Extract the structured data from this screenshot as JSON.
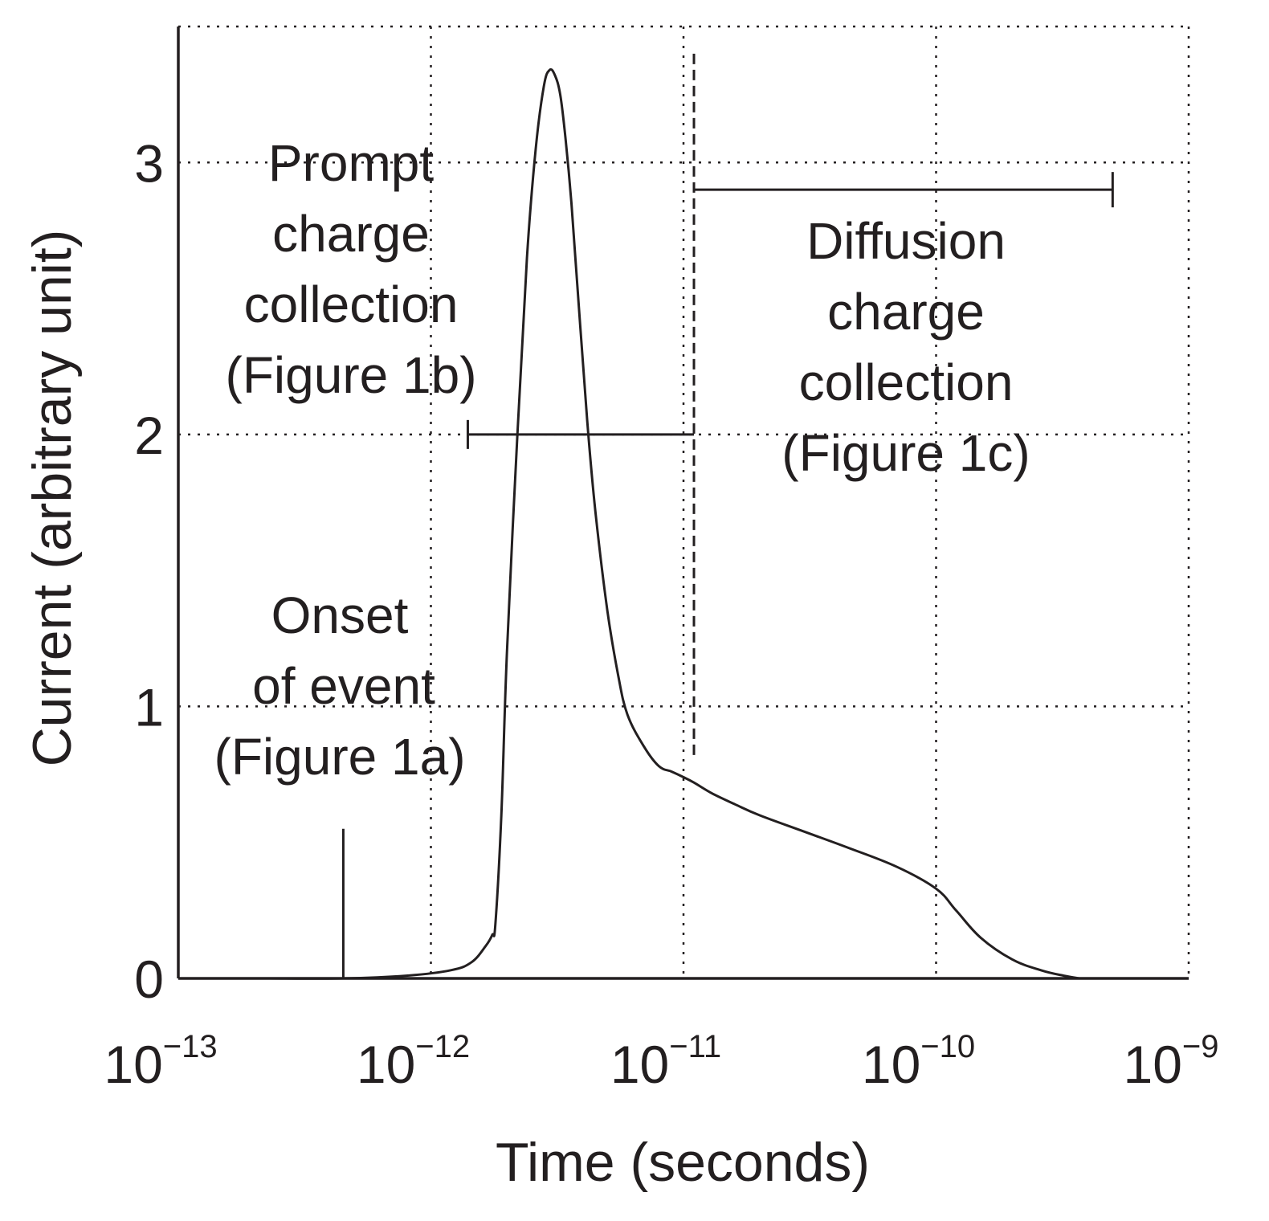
{
  "chart_data": {
    "type": "line",
    "title": "",
    "xlabel": "Time (seconds)",
    "ylabel": "Current (arbitrary unit)",
    "x_scale": "log",
    "xlim": [
      1e-13,
      1e-09
    ],
    "ylim": [
      0,
      3.5
    ],
    "grid": true,
    "x_ticks": [
      {
        "base": "10",
        "exp": "−13",
        "value": 1e-13
      },
      {
        "base": "10",
        "exp": "−12",
        "value": 1e-12
      },
      {
        "base": "10",
        "exp": "−11",
        "value": 1e-11
      },
      {
        "base": "10",
        "exp": "−10",
        "value": 1e-10
      },
      {
        "base": "10",
        "exp": "−9",
        "value": 1e-09
      }
    ],
    "y_ticks": [
      {
        "label": "0",
        "value": 0
      },
      {
        "label": "1",
        "value": 1
      },
      {
        "label": "2",
        "value": 2
      },
      {
        "label": "3",
        "value": 3
      }
    ],
    "series": [
      {
        "name": "Current",
        "x": [
          2.3e-13,
          4.5e-13,
          8e-13,
          1.2e-12,
          1.45e-12,
          1.65e-12,
          1.75e-12,
          1.8e-12,
          1.9e-12,
          2e-12,
          2.2e-12,
          2.4e-12,
          2.6e-12,
          2.8e-12,
          2.95e-12,
          3.1e-12,
          3.25e-12,
          3.4e-12,
          3.6e-12,
          3.9e-12,
          4.2e-12,
          4.5e-12,
          5e-12,
          5.5e-12,
          6e-12,
          7e-12,
          8e-12,
          9e-12,
          1e-11,
          1.1e-11,
          1.3e-11,
          1.6e-11,
          2e-11,
          3e-11,
          4.5e-11,
          7e-11,
          1e-10,
          1.2e-10,
          1.5e-10,
          2e-10,
          2.6e-10,
          3.2e-10,
          3.7e-10
        ],
        "y": [
          0,
          0,
          0.01,
          0.03,
          0.06,
          0.12,
          0.16,
          0.2,
          0.6,
          1.2,
          2.0,
          2.65,
          3.05,
          3.28,
          3.34,
          3.32,
          3.25,
          3.1,
          2.85,
          2.4,
          2.0,
          1.7,
          1.35,
          1.12,
          0.97,
          0.85,
          0.78,
          0.76,
          0.74,
          0.72,
          0.68,
          0.64,
          0.6,
          0.54,
          0.48,
          0.41,
          0.33,
          0.25,
          0.15,
          0.07,
          0.03,
          0.01,
          0
        ]
      }
    ],
    "annotations": {
      "prompt": {
        "lines": [
          "Prompt",
          "charge",
          "collection",
          "(Figure 1b)"
        ],
        "range": [
          1.4e-12,
          1.1e-11
        ],
        "y": 2.0
      },
      "diffusion": {
        "lines": [
          "Diffusion",
          "charge",
          "collection",
          "(Figure 1c)"
        ],
        "range": [
          1.1e-11,
          5e-10
        ],
        "y": 2.9
      },
      "onset": {
        "lines": [
          "Onset",
          "of event",
          "(Figure 1a)"
        ],
        "x": 4.5e-13,
        "y_top": 0.55
      },
      "separator_x": 1.1e-11
    }
  }
}
